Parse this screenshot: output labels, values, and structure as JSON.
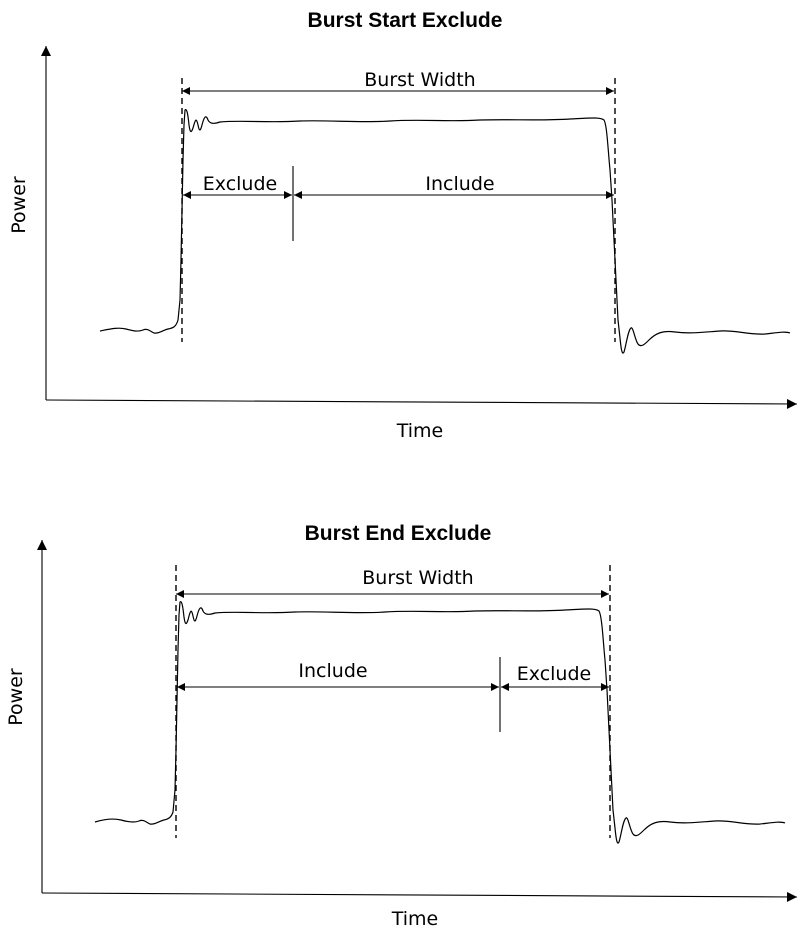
{
  "diagrams": [
    {
      "title": "Burst Start Exclude",
      "y_axis_label": "Power",
      "x_axis_label": "Time",
      "span_label": "Burst Width",
      "segments": [
        "Exclude",
        "Include"
      ]
    },
    {
      "title": "Burst End Exclude",
      "y_axis_label": "Power",
      "x_axis_label": "Time",
      "span_label": "Burst Width",
      "segments": [
        "Include",
        "Exclude"
      ]
    }
  ]
}
